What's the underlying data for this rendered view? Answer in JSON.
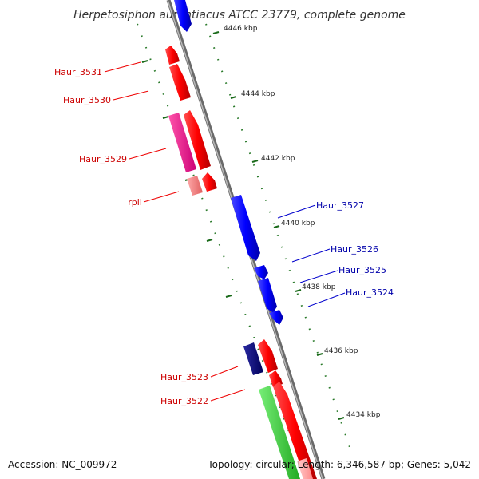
{
  "title": "Herpetosiphon aurantiacus ATCC 23779, complete genome",
  "footer": {
    "accession": "Accession: NC_009972",
    "summary": "Topology: circular; Length: 6,346,587 bp; Genes: 5,042"
  },
  "ticks": [
    "4446 kbp",
    "4444 kbp",
    "4442 kbp",
    "4440 kbp",
    "4438 kbp",
    "4436 kbp",
    "4434 kbp"
  ],
  "gene_labels": {
    "Haur_3531": "Haur_3531",
    "Haur_3530": "Haur_3530",
    "Haur_3529": "Haur_3529",
    "rplI": "rplI",
    "Haur_3527": "Haur_3527",
    "Haur_3526": "Haur_3526",
    "Haur_3525": "Haur_3525",
    "Haur_3524": "Haur_3524",
    "Haur_3523": "Haur_3523",
    "Haur_3522": "Haur_3522"
  },
  "colors": {
    "forward": "#ff0000",
    "reverse": "#0000ff",
    "dark_reverse": "#000080",
    "magenta": "#ff1493",
    "pink": "#f08080",
    "green": "#33cc33",
    "backbone": "#888888",
    "dots": "#2a7a2a"
  }
}
